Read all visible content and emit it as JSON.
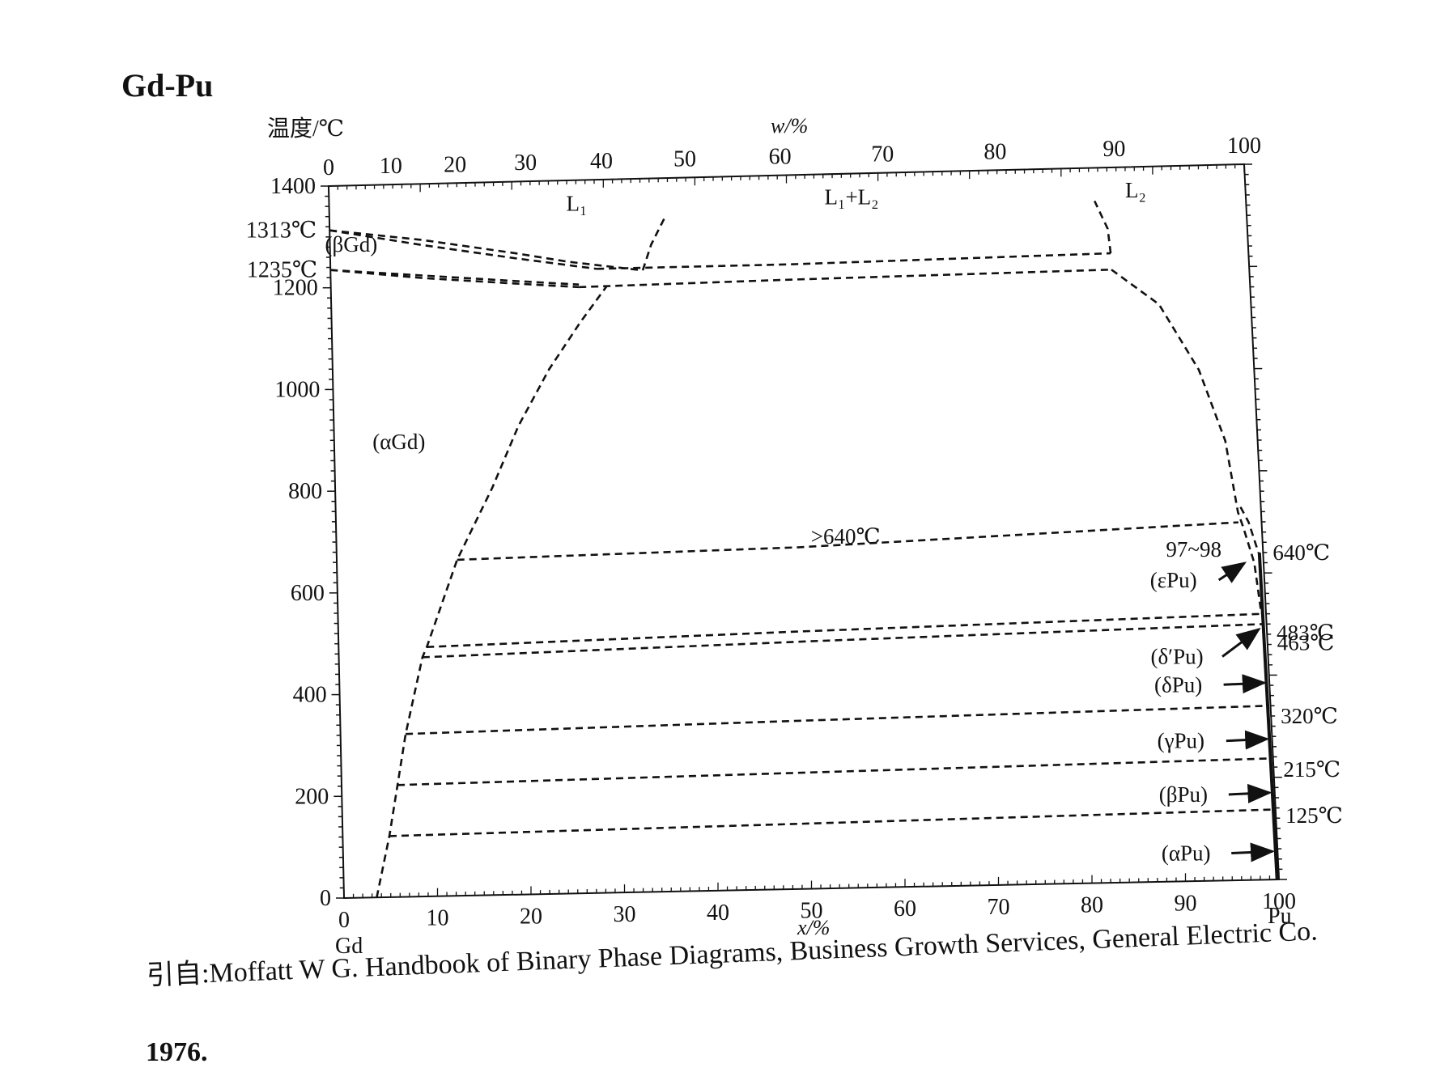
{
  "title": "Gd-Pu",
  "chart_data": {
    "type": "phase-diagram",
    "system": "Gd-Pu",
    "ylabel": "温度/℃",
    "xlabel_bottom": "x/%",
    "xlabel_top": "w/%",
    "ylim": [
      0,
      1400
    ],
    "xlim": [
      0,
      100
    ],
    "y_ticks": [
      0,
      200,
      400,
      600,
      800,
      1000,
      1200,
      1400
    ],
    "x_ticks_bottom": [
      0,
      10,
      20,
      30,
      40,
      50,
      60,
      70,
      80,
      90,
      100
    ],
    "x_ticks_top": [
      0,
      10,
      20,
      30,
      40,
      50,
      60,
      70,
      80,
      90,
      100
    ],
    "left_element": "Gd",
    "right_element": "Pu",
    "left_temperature_labels": [
      {
        "text": "1313℃",
        "t": 1313
      },
      {
        "text": "1235℃",
        "t": 1235
      }
    ],
    "right_temperature_labels": [
      {
        "text": "640℃",
        "t": 640
      },
      {
        "text": "483℃",
        "t": 483
      },
      {
        "text": "463℃",
        "t": 463
      },
      {
        "text": "320℃",
        "t": 320
      },
      {
        "text": "215℃",
        "t": 215
      },
      {
        "text": "125℃",
        "t": 125
      }
    ],
    "regions": [
      {
        "label": "L₁",
        "x": 27,
        "t": 1340
      },
      {
        "label": "L₁+L₂",
        "x": 57,
        "t": 1340
      },
      {
        "label": "L₂",
        "x": 88,
        "t": 1340
      },
      {
        "label": "(βGd)",
        "x": 2.3,
        "t": 1270
      },
      {
        "label": "(αGd)",
        "x": 7,
        "t": 880
      },
      {
        "label": ">640℃",
        "x": 55,
        "t": 675
      },
      {
        "label": "97~98",
        "x": 92.5,
        "t": 635
      }
    ],
    "pu_phases": [
      {
        "label": "(εPu)",
        "t": 590,
        "arrow_to": {
          "x": 98.3,
          "t": 620
        }
      },
      {
        "label": "(δ′Pu)",
        "t": 440,
        "arrow_to": {
          "x": 99.5,
          "t": 490
        }
      },
      {
        "label": "(δPu)",
        "t": 385,
        "arrow_to": {
          "x": 99.8,
          "t": 385
        }
      },
      {
        "label": "(γPu)",
        "t": 275,
        "arrow_to": {
          "x": 99.8,
          "t": 275
        }
      },
      {
        "label": "(βPu)",
        "t": 170,
        "arrow_to": {
          "x": 99.8,
          "t": 170
        }
      },
      {
        "label": "(αPu)",
        "t": 55,
        "arrow_to": {
          "x": 99.8,
          "t": 55
        }
      }
    ],
    "boundaries": [
      {
        "name": "bGd-liquidus",
        "points": [
          [
            0,
            1313
          ],
          [
            10,
            1290
          ],
          [
            20,
            1260
          ],
          [
            26,
            1240
          ],
          [
            34,
            1220
          ]
        ]
      },
      {
        "name": "bGd-solidus",
        "points": [
          [
            0,
            1313
          ],
          [
            10,
            1280
          ],
          [
            20,
            1250
          ],
          [
            29,
            1225
          ]
        ]
      },
      {
        "name": "aGd-bGd-upper",
        "points": [
          [
            0,
            1235
          ],
          [
            10,
            1220
          ],
          [
            20,
            1205
          ],
          [
            27,
            1195
          ]
        ]
      },
      {
        "name": "aGd-bGd-lower",
        "points": [
          [
            0,
            1235
          ],
          [
            10,
            1215
          ],
          [
            20,
            1200
          ],
          [
            27,
            1190
          ]
        ]
      },
      {
        "name": "monotectic",
        "points": [
          [
            29,
            1225
          ],
          [
            50,
            1225
          ],
          [
            85,
            1232
          ]
        ]
      },
      {
        "name": "eutectoid",
        "points": [
          [
            27,
            1190
          ],
          [
            50,
            1195
          ],
          [
            85,
            1200
          ]
        ]
      },
      {
        "name": "L1-miscibility",
        "points": [
          [
            34,
            1220
          ],
          [
            35,
            1270
          ],
          [
            36.5,
            1320
          ]
        ]
      },
      {
        "name": "L2-miscibility",
        "points": [
          [
            85,
            1232
          ],
          [
            84.8,
            1280
          ],
          [
            83.5,
            1335
          ]
        ]
      },
      {
        "name": "aGd-solvus",
        "points": [
          [
            3.5,
            0
          ],
          [
            5,
            120
          ],
          [
            6,
            220
          ],
          [
            7,
            320
          ],
          [
            9,
            470
          ],
          [
            9.5,
            490
          ],
          [
            13,
            660
          ],
          [
            17,
            800
          ],
          [
            20,
            920
          ],
          [
            23.5,
            1030
          ],
          [
            27,
            1120
          ],
          [
            30,
            1190
          ]
        ]
      },
      {
        "name": "Pu-side-solvus",
        "points": [
          [
            85,
            1200
          ],
          [
            90,
            1130
          ],
          [
            94,
            1000
          ],
          [
            96.5,
            860
          ],
          [
            97.5,
            720
          ],
          [
            98,
            690
          ],
          [
            99,
            620
          ],
          [
            99.5,
            520
          ]
        ]
      },
      {
        "name": "Pu-side-upper",
        "points": [
          [
            97.8,
            730
          ],
          [
            98.6,
            700
          ],
          [
            99.5,
            640
          ]
        ]
      },
      {
        "name": "iso-640",
        "points": [
          [
            13,
            660
          ],
          [
            50,
            670
          ],
          [
            97.5,
            700
          ]
        ]
      },
      {
        "name": "iso-483",
        "points": [
          [
            9.5,
            490
          ],
          [
            50,
            505
          ],
          [
            99.5,
            520
          ]
        ]
      },
      {
        "name": "iso-463",
        "points": [
          [
            9,
            470
          ],
          [
            50,
            485
          ],
          [
            99.5,
            500
          ]
        ]
      },
      {
        "name": "iso-320",
        "points": [
          [
            7,
            320
          ],
          [
            50,
            330
          ],
          [
            99.7,
            340
          ]
        ]
      },
      {
        "name": "iso-215",
        "points": [
          [
            6,
            220
          ],
          [
            50,
            228
          ],
          [
            99.8,
            237
          ]
        ]
      },
      {
        "name": "iso-125",
        "points": [
          [
            5,
            120
          ],
          [
            50,
            128
          ],
          [
            99.8,
            137
          ]
        ]
      }
    ]
  },
  "caption": {
    "line1": "引自:Moffatt W G. Handbook of Binary Phase Diagrams, Business Growth Services, General Electric Co.",
    "line2": "1976."
  }
}
